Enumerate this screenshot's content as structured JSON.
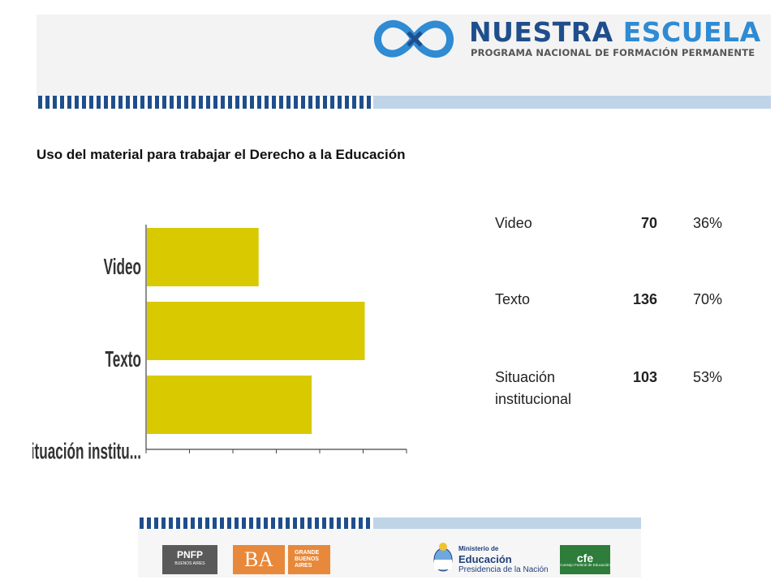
{
  "header": {
    "logo_title_part1": "NUESTRA",
    "logo_title_part2": "ESCUELA",
    "logo_subtitle": "PROGRAMA NACIONAL DE FORMACIÓN PERMANENTE",
    "brand_color": "#1f4e8c",
    "accent_color": "#2e8bd4",
    "logo_icon": "infinity-icon"
  },
  "section_title": "Uso del material para trabajar el Derecho a la Educación",
  "chart_data": {
    "type": "bar",
    "orientation": "horizontal",
    "categories": [
      "Video",
      "Texto",
      "Situación institu..."
    ],
    "values": [
      70,
      136,
      103
    ],
    "xlim": [
      0,
      162
    ],
    "xticks": [
      "0",
      "27",
      "54",
      "81",
      "108",
      "135",
      "162"
    ],
    "bar_color": "#d9c900",
    "grid": false,
    "title": "",
    "xlabel": "",
    "ylabel": ""
  },
  "table": [
    {
      "label": "Video",
      "count": "70",
      "percent": "36%"
    },
    {
      "label": "Texto",
      "count": "136",
      "percent": "70%"
    },
    {
      "label": "Situación institucional",
      "count": "103",
      "percent": "53%"
    }
  ],
  "footer": {
    "pnfp": "PNFP",
    "pnfp_sub": "BUENOS AIRES",
    "ba": "BA",
    "gba_line1": "GRANDE",
    "gba_line2": "BUENOS",
    "gba_line3": "AIRES",
    "ministerio_line1": "Ministerio de",
    "ministerio_line2": "Educación",
    "ministerio_line3": "Presidencia de la Nación",
    "cfe": "cfe",
    "cfe_sub": "Consejo Federal de Educación",
    "ba_color": "#e8883a",
    "cfe_color": "#2e7d3a",
    "shield_icon": "argentina-shield-icon"
  }
}
